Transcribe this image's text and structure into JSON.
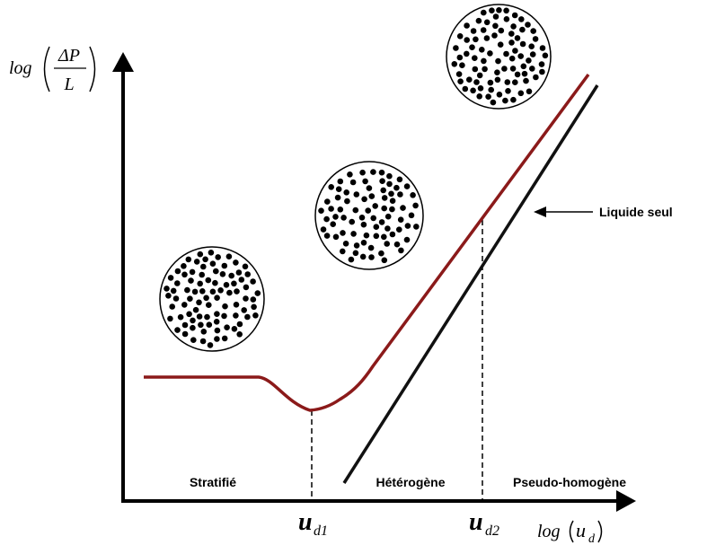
{
  "y_axis": {
    "prefix": "log",
    "numerator": "ΔP",
    "denominator": "L"
  },
  "x_axis": {
    "prefix": "log",
    "variable": "u",
    "subscript": "d"
  },
  "markers": [
    {
      "variable": "u",
      "subscript": "d1"
    },
    {
      "variable": "u",
      "subscript": "d2"
    }
  ],
  "regions": [
    "Stratifié",
    "Hétérogène",
    "Pseudo-homogène"
  ],
  "callout": "Liquide seul"
}
